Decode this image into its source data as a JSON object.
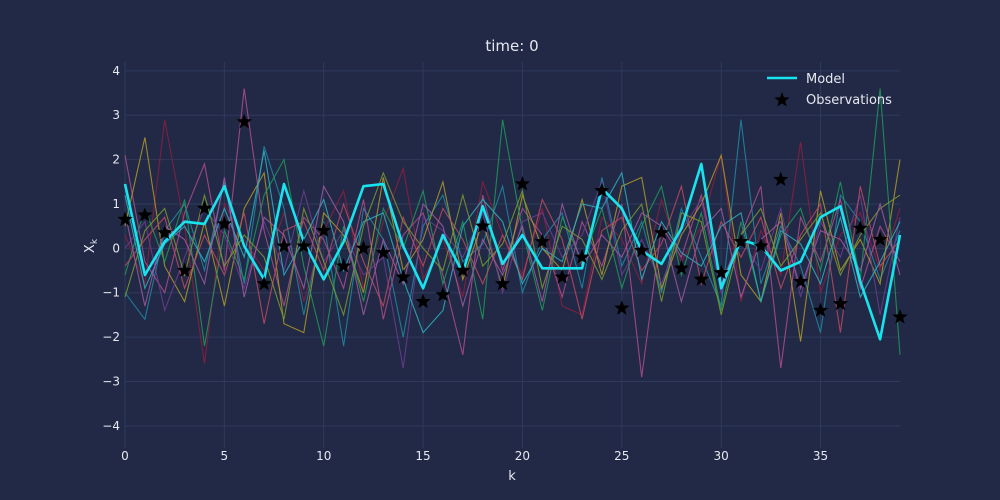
{
  "chart_data": {
    "type": "line",
    "title": "time: 0",
    "xlabel": "k",
    "ylabel_base": "X",
    "ylabel_sub": "k",
    "xlim": [
      0,
      39
    ],
    "ylim": [
      -4.5,
      4.2
    ],
    "xticks": [
      0,
      5,
      10,
      15,
      20,
      25,
      30,
      35
    ],
    "yticks": [
      -4,
      -3,
      -2,
      -1,
      0,
      1,
      2,
      3,
      4
    ],
    "grid": true,
    "legend": {
      "placement": "top-right",
      "entries": [
        "Model",
        "Observations"
      ]
    },
    "colors": {
      "background": "#212946",
      "grid": "#2f3a5c",
      "model": "#18e4f0",
      "observations": "#000000",
      "ensemble": [
        "#8f1d3f",
        "#1e8aa5",
        "#b04d8c",
        "#b09a28",
        "#1f9a5a",
        "#6a3d8f",
        "#c04a60",
        "#2fb0c0",
        "#7a9a30",
        "#a05aa0"
      ]
    },
    "x": [
      0,
      1,
      2,
      3,
      4,
      5,
      6,
      7,
      8,
      9,
      10,
      11,
      12,
      13,
      14,
      15,
      16,
      17,
      18,
      19,
      20,
      21,
      22,
      23,
      24,
      25,
      26,
      27,
      28,
      29,
      30,
      31,
      32,
      33,
      34,
      35,
      36,
      37,
      38,
      39
    ],
    "model": [
      1.45,
      -0.6,
      0.15,
      0.6,
      0.55,
      1.4,
      0.05,
      -0.7,
      1.45,
      0.15,
      -0.7,
      0.15,
      1.4,
      1.45,
      0.05,
      -0.9,
      0.3,
      -0.55,
      0.95,
      -0.35,
      0.3,
      -0.45,
      -0.45,
      -0.45,
      1.35,
      0.9,
      -0.05,
      -0.35,
      0.45,
      1.9,
      -0.9,
      0.2,
      0.05,
      -0.5,
      -0.3,
      0.7,
      0.95,
      -0.75,
      -2.05,
      0.3
    ],
    "observations": [
      0.65,
      0.75,
      0.35,
      -0.5,
      0.9,
      0.55,
      2.85,
      -0.8,
      0.05,
      0.05,
      0.4,
      -0.4,
      0.0,
      -0.1,
      -0.65,
      -1.2,
      -1.05,
      -0.5,
      0.5,
      -0.8,
      1.45,
      0.15,
      -0.65,
      -0.2,
      1.3,
      -1.35,
      -0.05,
      0.35,
      -0.45,
      -0.7,
      -0.55,
      0.15,
      0.05,
      1.55,
      -0.75,
      -1.4,
      -1.25,
      0.45,
      0.2,
      -1.55
    ],
    "ensemble": [
      {
        "values": [
          0.3,
          -0.8,
          2.9,
          0.5,
          -2.6,
          1.0,
          0.2,
          -0.5,
          0.8,
          -1.2,
          0.4,
          1.3,
          -0.9,
          0.6,
          1.8,
          -0.7,
          0.2,
          -1.1,
          1.5,
          0.3,
          -0.6,
          0.9,
          -1.3,
          -1.5,
          0.7,
          0.2,
          -0.8,
          1.1,
          -0.3,
          0.5,
          2.1,
          -1.2,
          0.4,
          -0.6,
          2.4,
          -1.0,
          0.3,
          0.8,
          -0.5,
          0.9
        ]
      },
      {
        "values": [
          -1.0,
          -1.6,
          0.4,
          1.0,
          -0.5,
          1.5,
          -0.8,
          2.3,
          0.9,
          -1.5,
          0.6,
          -2.2,
          0.9,
          0.2,
          -2.0,
          0.5,
          1.2,
          -0.3,
          0.1,
          1.4,
          -1.0,
          0.2,
          0.8,
          -0.9,
          1.6,
          -0.4,
          0.6,
          -1.0,
          0.9,
          -0.2,
          -1.3,
          2.9,
          -0.8,
          0.5,
          -0.4,
          -1.9,
          1.2,
          0.6,
          -0.7,
          0.4
        ]
      },
      {
        "values": [
          2.1,
          -0.3,
          -1.0,
          0.8,
          1.9,
          -0.5,
          3.6,
          0.4,
          -1.3,
          0.7,
          0.2,
          -0.9,
          1.1,
          -1.6,
          0.3,
          0.8,
          -0.6,
          -2.4,
          1.2,
          -0.5,
          0.9,
          0.3,
          -1.1,
          0.6,
          -0.4,
          1.0,
          -2.9,
          0.5,
          -0.2,
          1.2,
          -0.8,
          0.3,
          1.4,
          -2.7,
          0.7,
          -0.3,
          1.1,
          -0.9,
          0.5,
          -0.3
        ]
      },
      {
        "values": [
          0.5,
          2.5,
          -0.4,
          -1.2,
          0.6,
          -1.3,
          0.9,
          1.7,
          -1.7,
          -1.9,
          0.8,
          0.3,
          -1.0,
          1.6,
          -0.5,
          0.2,
          1.5,
          -0.7,
          0.6,
          -0.9,
          1.2,
          0.0,
          -0.5,
          1.1,
          -0.6,
          1.4,
          1.6,
          -0.9,
          0.3,
          1.0,
          2.1,
          -0.6,
          -1.2,
          0.8,
          -2.1,
          1.3,
          -0.5,
          0.2,
          -0.8,
          2.0
        ]
      },
      {
        "values": [
          -0.6,
          0.9,
          -0.3,
          1.1,
          -2.2,
          0.4,
          -0.7,
          1.2,
          2.0,
          -0.4,
          -2.2,
          0.5,
          -1.2,
          0.9,
          0.0,
          1.3,
          -0.8,
          0.6,
          -1.6,
          2.9,
          0.4,
          -1.4,
          0.7,
          -0.3,
          0.9,
          -0.9,
          0.5,
          1.4,
          -0.6,
          0.8,
          -1.4,
          0.6,
          -1.2,
          0.3,
          0.9,
          -0.5,
          1.5,
          -0.7,
          3.6,
          -2.4
        ]
      },
      {
        "values": [
          0.0,
          0.6,
          -1.4,
          -0.2,
          0.9,
          0.3,
          -0.9,
          0.6,
          -0.5,
          1.3,
          -0.3,
          0.4,
          -0.6,
          -0.2,
          -2.7,
          0.7,
          0.4,
          -0.2,
          0.8,
          -1.0,
          0.6,
          0.8,
          -0.2,
          0.3,
          1.5,
          -0.6,
          0.2,
          -0.8,
          0.4,
          1.1,
          -1.0,
          0.2,
          -0.5,
          0.9,
          -1.1,
          0.6,
          -0.2,
          1.2,
          -1.5,
          0.7
        ]
      },
      {
        "values": [
          -0.4,
          0.2,
          0.7,
          -0.9,
          0.3,
          -0.6,
          0.8,
          -1.7,
          0.4,
          0.6,
          -0.5,
          1.0,
          -0.3,
          -1.3,
          0.7,
          -0.4,
          0.9,
          0.2,
          -0.8,
          0.3,
          -0.7,
          1.1,
          0.2,
          -1.6,
          0.4,
          0.7,
          -0.5,
          0.1,
          1.4,
          -0.8,
          0.6,
          -0.2,
          0.7,
          -0.9,
          0.3,
          1.0,
          -1.9,
          1.4,
          -0.4,
          0.2
        ]
      },
      {
        "values": [
          1.2,
          -0.9,
          0.1,
          0.5,
          -0.3,
          0.9,
          -0.2,
          2.2,
          -0.6,
          0.2,
          1.1,
          -0.5,
          0.6,
          0.8,
          -0.7,
          -1.9,
          -1.4,
          0.5,
          1.1,
          0.6,
          -0.8,
          0.0,
          -0.3,
          1.0,
          0.9,
          1.7,
          -0.7,
          0.6,
          -0.1,
          -0.4,
          0.5,
          0.8,
          -1.2,
          0.4,
          0.1,
          -0.8,
          0.7,
          -1.1,
          -0.3,
          0.6
        ]
      },
      {
        "values": [
          -1.1,
          0.4,
          0.9,
          -0.6,
          1.2,
          -0.4,
          0.3,
          -0.2,
          -1.6,
          0.9,
          -0.3,
          -1.5,
          0.5,
          1.7,
          0.6,
          0.0,
          -0.5,
          1.2,
          -0.4,
          0.1,
          1.3,
          -0.9,
          0.5,
          0.2,
          -0.7,
          0.4,
          1.0,
          -1.2,
          0.8,
          0.6,
          -1.5,
          0.3,
          0.9,
          -0.4,
          0.2,
          0.8,
          -0.6,
          0.3,
          0.9,
          1.2
        ]
      },
      {
        "values": [
          0.8,
          -1.3,
          0.5,
          0.2,
          -0.8,
          1.6,
          -1.1,
          0.7,
          0.3,
          -0.9,
          1.4,
          0.6,
          -1.5,
          0.2,
          -0.8,
          1.0,
          0.5,
          -1.3,
          0.2,
          -0.6,
          0.5,
          -1.2,
          1.0,
          -0.4,
          0.3,
          -0.2,
          0.8,
          0.5,
          -1.2,
          0.4,
          0.9,
          -1.1,
          0.2,
          0.6,
          -0.9,
          0.4,
          0.2,
          -0.5,
          1.0,
          -0.6
        ]
      }
    ]
  }
}
